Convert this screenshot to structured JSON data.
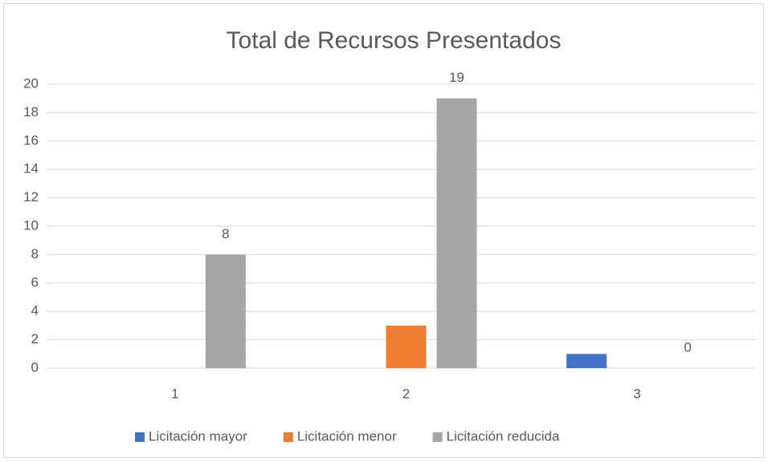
{
  "chart_data": {
    "type": "bar",
    "title": "Total de Recursos Presentados",
    "categories": [
      "1",
      "2",
      "3"
    ],
    "series": [
      {
        "name": "Licitación mayor",
        "color": "#4472c4",
        "values": [
          null,
          null,
          1
        ]
      },
      {
        "name": "Licitación menor",
        "color": "#ed7d31",
        "values": [
          null,
          3,
          null
        ]
      },
      {
        "name": "Licitación reducida",
        "color": "#a5a5a5",
        "values": [
          8,
          19,
          0
        ],
        "data_labels": true
      }
    ],
    "ylim": [
      0,
      20
    ],
    "yticks": [
      0,
      2,
      4,
      6,
      8,
      10,
      12,
      14,
      16,
      18,
      20
    ],
    "grid": true,
    "legend": "bottom"
  }
}
